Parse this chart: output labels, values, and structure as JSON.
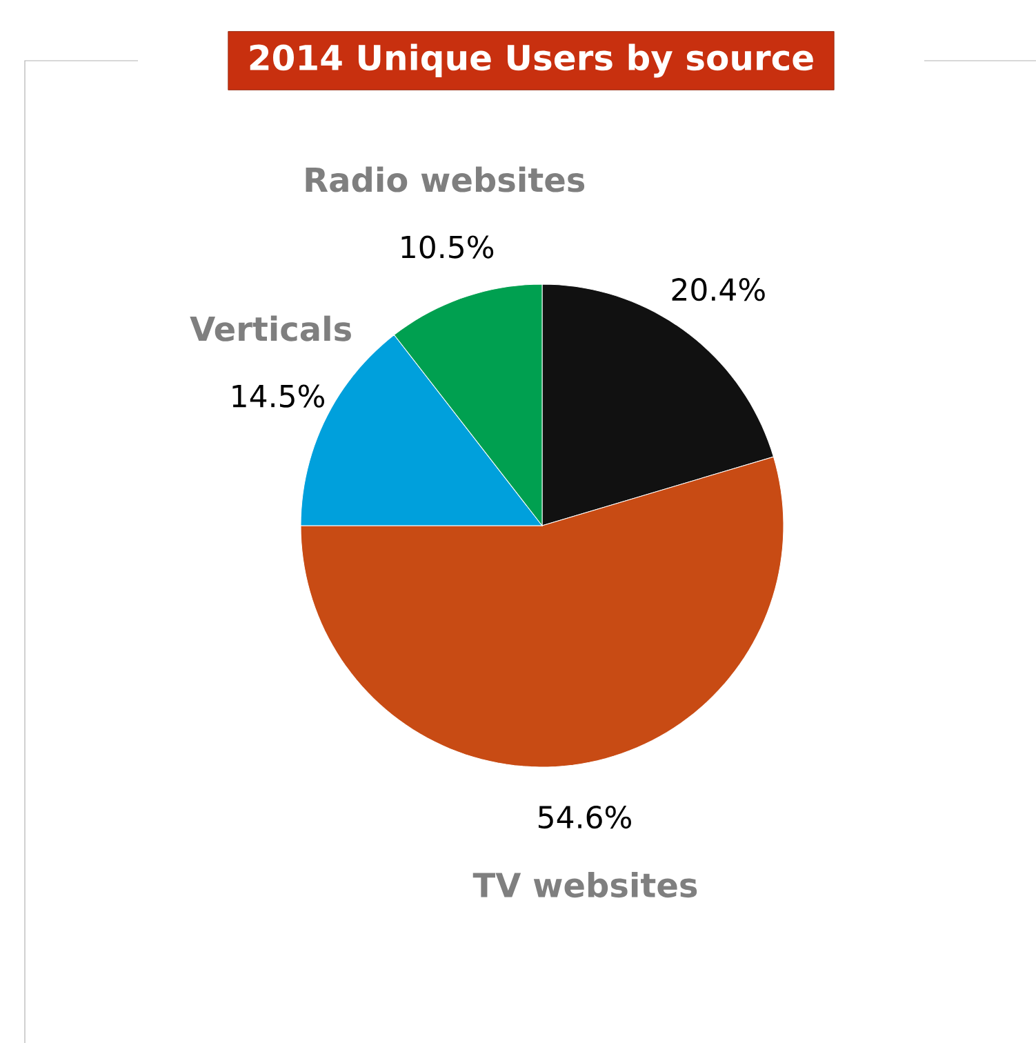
{
  "chart_data": {
    "type": "pie",
    "title": "2014 Unique Users by source",
    "categories": [
      null,
      "TV websites",
      "Verticals",
      "Radio websites"
    ],
    "values": [
      20.4,
      54.6,
      14.5,
      10.5
    ],
    "value_labels": [
      "20.4%",
      "54.6%",
      "14.5%",
      "10.5%"
    ],
    "colors": [
      "#111111",
      "#c84b14",
      "#00a0dc",
      "#00a050"
    ],
    "legend": false
  }
}
